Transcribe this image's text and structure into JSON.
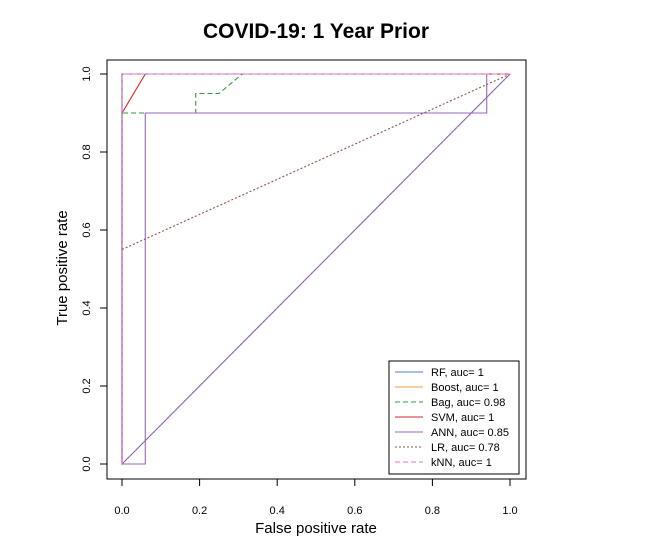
{
  "chart_data": {
    "type": "line",
    "title": "COVID-19: 1 Year Prior",
    "xlabel": "False positive rate",
    "ylabel": "True positive rate",
    "xlim": [
      0,
      1
    ],
    "ylim": [
      0,
      1
    ],
    "xticks": [
      "0.0",
      "0.2",
      "0.4",
      "0.6",
      "0.8",
      "1.0"
    ],
    "yticks": [
      "0.0",
      "0.2",
      "0.4",
      "0.6",
      "0.8",
      "1.0"
    ],
    "grid": false,
    "legend_position": "bottom-right",
    "reference_line": {
      "x": [
        0,
        1
      ],
      "y": [
        0,
        1
      ],
      "color": "#555555",
      "dash": "dotted"
    },
    "series": [
      {
        "name": "RF, auc= 1",
        "color": "#4f7fc0",
        "dash": "solid",
        "x": [
          0,
          0,
          1
        ],
        "y": [
          0,
          1,
          1
        ]
      },
      {
        "name": "Boost, auc= 1",
        "color": "#f39c34",
        "dash": "solid",
        "x": [
          0,
          0,
          1
        ],
        "y": [
          0,
          1,
          1
        ]
      },
      {
        "name": "Bag, auc= 0.98",
        "color": "#3a9a3a",
        "dash": "dashed",
        "x": [
          0,
          0,
          0.06,
          0.19,
          0.19,
          0.25,
          0.31,
          1
        ],
        "y": [
          0,
          0.9,
          0.9,
          0.9,
          0.95,
          0.95,
          1,
          1
        ]
      },
      {
        "name": "SVM, auc= 1",
        "color": "#d62728",
        "dash": "solid",
        "x": [
          0,
          0,
          0.06,
          1
        ],
        "y": [
          0,
          0.9,
          1,
          1
        ]
      },
      {
        "name": "ANN, auc= 0.85",
        "color": "#9467bd",
        "dash": "solid",
        "x": [
          0,
          0.06,
          0.06,
          0.94,
          0.94,
          0,
          0,
          1
        ],
        "y": [
          0,
          0,
          0.9,
          0.9,
          1,
          1,
          0,
          1
        ]
      },
      {
        "name": "LR, auc= 0.78",
        "color": "#8c564b",
        "dash": "dotted",
        "x": [
          0,
          1
        ],
        "y": [
          0.55,
          1
        ]
      },
      {
        "name": "kNN, auc= 1",
        "color": "#e377c2",
        "dash": "dashed",
        "x": [
          0,
          0,
          1
        ],
        "y": [
          0,
          1,
          1
        ]
      }
    ]
  }
}
